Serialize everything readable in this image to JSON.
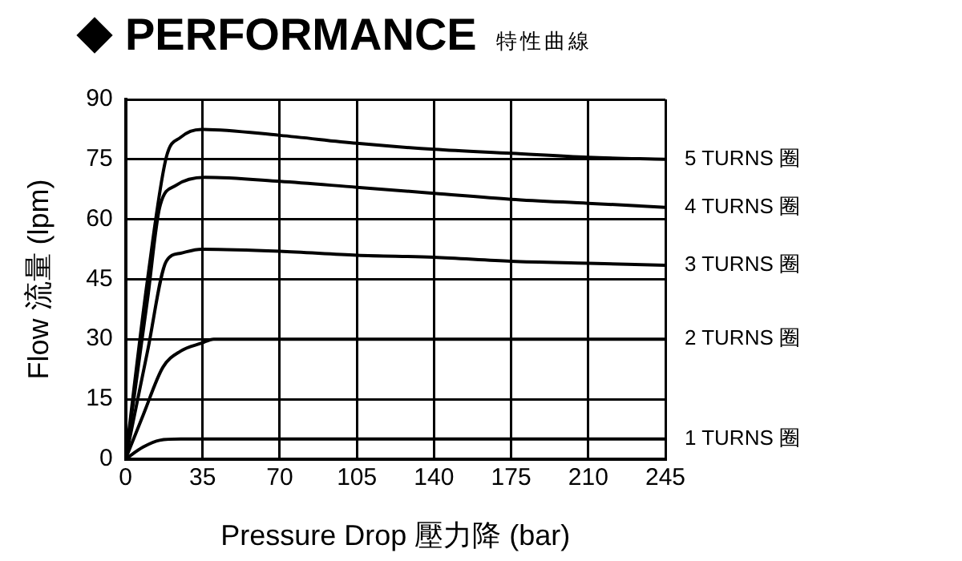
{
  "chart_data": {
    "type": "line",
    "title": "PERFORMANCE",
    "subtitle": "特性曲線",
    "xlabel": "Pressure Drop 壓力降 (bar)",
    "ylabel": "Flow 流量 (lpm)",
    "xlim": [
      0,
      245
    ],
    "xticks": [
      0,
      35,
      70,
      105,
      140,
      175,
      210,
      245
    ],
    "ylim": [
      0,
      90
    ],
    "yticks": [
      0,
      15,
      30,
      45,
      60,
      75,
      90
    ],
    "grid": true,
    "legend": false,
    "marker": "none",
    "line_style": "solid",
    "series": [
      {
        "name": "5 TURNS 圈",
        "color": "#000000",
        "x": [
          0,
          10,
          18.5,
          25,
          34.5,
          70,
          105,
          140,
          175,
          210,
          245
        ],
        "values": [
          0,
          45,
          75.5,
          80.5,
          82.5,
          81,
          79,
          77.5,
          76.5,
          75.5,
          75
        ]
      },
      {
        "name": "4 TURNS 圈",
        "color": "#000000",
        "x": [
          0,
          10,
          15.5,
          23,
          36,
          70,
          105,
          140,
          175,
          210,
          245
        ],
        "values": [
          0,
          40,
          63,
          68.5,
          70.5,
          69.5,
          68,
          66.5,
          65,
          64,
          63
        ]
      },
      {
        "name": "3 TURNS 圈",
        "color": "#000000",
        "x": [
          0,
          10,
          18.5,
          25,
          34.5,
          70,
          105,
          140,
          175,
          210,
          245
        ],
        "values": [
          0,
          27,
          49.5,
          51.5,
          52.5,
          52,
          51,
          50.5,
          49.5,
          49,
          48.5
        ]
      },
      {
        "name": "2 TURNS 圈",
        "color": "#000000",
        "x": [
          0,
          8,
          17,
          25,
          34.5,
          40,
          245
        ],
        "values": [
          0,
          11,
          23,
          27,
          29,
          30,
          30
        ]
      },
      {
        "name": "1 TURNS 圈",
        "color": "#000000",
        "x": [
          0,
          8,
          15.5,
          25,
          245
        ],
        "values": [
          0,
          3,
          4.7,
          5,
          5
        ]
      }
    ]
  }
}
